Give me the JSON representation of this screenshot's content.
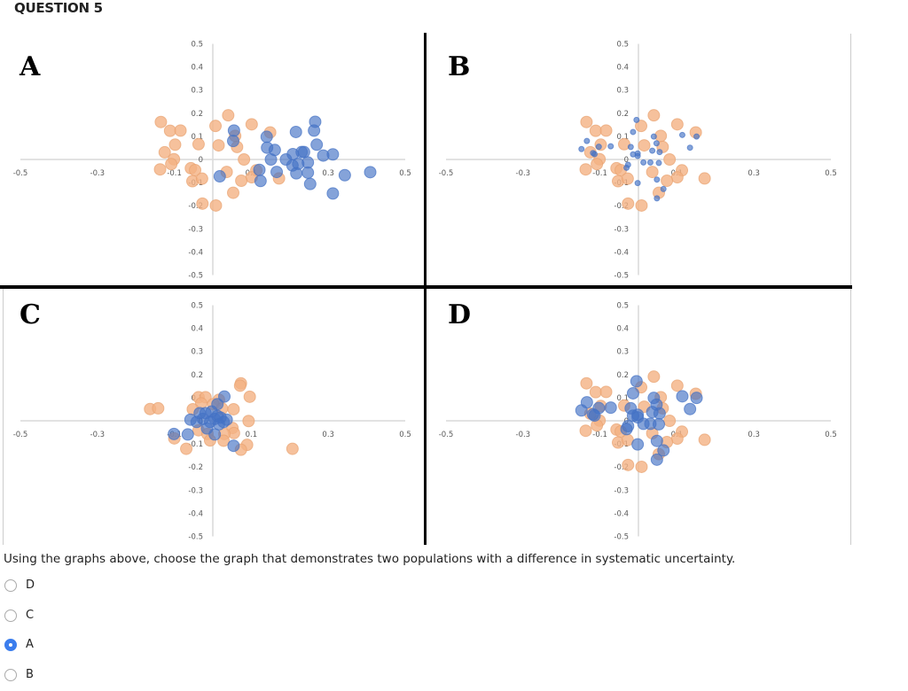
{
  "header": {
    "title": "QUESTION 5"
  },
  "question": {
    "text": "Using the graphs above, choose the graph that demonstrates two populations with a difference in systematic uncertainty.",
    "options": [
      {
        "label": "D",
        "selected": false
      },
      {
        "label": "C",
        "selected": false
      },
      {
        "label": "A",
        "selected": true
      },
      {
        "label": "B",
        "selected": false
      }
    ],
    "accent": "#3b7ded"
  },
  "colors": {
    "orange": "#f4b183",
    "blue": "#4472c4"
  },
  "chart_data": [
    {
      "label": "A",
      "type": "scatter",
      "xlim": [
        -0.5,
        0.5
      ],
      "ylim": [
        -0.5,
        0.5
      ],
      "xticks": [
        "-0.5",
        "-0.3",
        "-0.1",
        "0.1",
        "0.3",
        "0.5"
      ],
      "yticks": [
        "0.5",
        "0.4",
        "0.3",
        "0.2",
        "0.1",
        "0",
        "-0.1",
        "-0.2",
        "-0.3",
        "-0.4",
        "-0.5"
      ],
      "series": [
        {
          "color": "orange",
          "marker": "large",
          "points": [
            [
              -0.135,
              0.162
            ],
            [
              -0.111,
              0.124
            ],
            [
              -0.084,
              0.125
            ],
            [
              0.007,
              0.145
            ],
            [
              0.04,
              0.191
            ],
            [
              0.101,
              0.152
            ],
            [
              0.149,
              0.117
            ],
            [
              0.058,
              0.102
            ],
            [
              -0.098,
              0.064
            ],
            [
              -0.037,
              0.066
            ],
            [
              0.015,
              0.061
            ],
            [
              0.063,
              0.054
            ],
            [
              -0.125,
              0.031
            ],
            [
              -0.101,
              0.001
            ],
            [
              0.081,
              0
            ],
            [
              -0.108,
              -0.02
            ],
            [
              -0.137,
              -0.043
            ],
            [
              -0.057,
              -0.038
            ],
            [
              -0.046,
              -0.046
            ],
            [
              0.036,
              -0.054
            ],
            [
              0.113,
              -0.047
            ],
            [
              0.101,
              -0.077
            ],
            [
              0.172,
              -0.082
            ],
            [
              -0.053,
              -0.094
            ],
            [
              -0.028,
              -0.083
            ],
            [
              0.074,
              -0.092
            ],
            [
              0.053,
              -0.144
            ],
            [
              -0.027,
              -0.191
            ],
            [
              0.008,
              -0.199
            ]
          ]
        },
        {
          "color": "blue",
          "marker": "large",
          "points": [
            [
              0.266,
              0.163
            ],
            [
              0.263,
              0.125
            ],
            [
              0.216,
              0.119
            ],
            [
              0.055,
              0.125
            ],
            [
              0.14,
              0.098
            ],
            [
              0.053,
              0.08
            ],
            [
              0.27,
              0.064
            ],
            [
              0.141,
              0.051
            ],
            [
              0.161,
              0.041
            ],
            [
              0.208,
              0.023
            ],
            [
              0.231,
              0.032
            ],
            [
              0.237,
              0.032
            ],
            [
              0.287,
              0.017
            ],
            [
              0.312,
              0.022
            ],
            [
              0.19,
              0
            ],
            [
              0.151,
              0
            ],
            [
              0.207,
              -0.026
            ],
            [
              0.222,
              -0.019
            ],
            [
              0.247,
              -0.013
            ],
            [
              0.121,
              -0.045
            ],
            [
              0.166,
              -0.054
            ],
            [
              0.217,
              -0.06
            ],
            [
              0.247,
              -0.057
            ],
            [
              0.343,
              -0.068
            ],
            [
              0.409,
              -0.055
            ],
            [
              0.018,
              -0.073
            ],
            [
              0.124,
              -0.093
            ],
            [
              0.253,
              -0.106
            ],
            [
              0.312,
              -0.147
            ]
          ]
        }
      ]
    },
    {
      "label": "B",
      "type": "scatter",
      "xlim": [
        -0.5,
        0.5
      ],
      "ylim": [
        -0.5,
        0.5
      ],
      "xticks": [
        "-0.5",
        "-0.3",
        "-0.1",
        "0.1",
        "0.3",
        "0.5"
      ],
      "yticks": [
        "0.5",
        "0.4",
        "0.3",
        "0.2",
        "0.1",
        "0",
        "-0.1",
        "-0.2",
        "-0.3",
        "-0.4",
        "-0.5"
      ],
      "series": [
        {
          "color": "orange",
          "marker": "large",
          "points": [
            [
              -0.135,
              0.162
            ],
            [
              -0.111,
              0.124
            ],
            [
              -0.084,
              0.125
            ],
            [
              0.007,
              0.145
            ],
            [
              0.04,
              0.191
            ],
            [
              0.101,
              0.152
            ],
            [
              0.149,
              0.117
            ],
            [
              0.058,
              0.102
            ],
            [
              -0.098,
              0.064
            ],
            [
              -0.037,
              0.066
            ],
            [
              0.015,
              0.061
            ],
            [
              0.063,
              0.054
            ],
            [
              -0.125,
              0.031
            ],
            [
              -0.101,
              0.001
            ],
            [
              0.081,
              0
            ],
            [
              -0.108,
              -0.02
            ],
            [
              -0.137,
              -0.043
            ],
            [
              -0.057,
              -0.038
            ],
            [
              -0.046,
              -0.046
            ],
            [
              0.036,
              -0.054
            ],
            [
              0.113,
              -0.047
            ],
            [
              0.101,
              -0.077
            ],
            [
              0.172,
              -0.082
            ],
            [
              -0.053,
              -0.094
            ],
            [
              -0.028,
              -0.083
            ],
            [
              0.074,
              -0.092
            ],
            [
              0.053,
              -0.144
            ],
            [
              -0.027,
              -0.191
            ],
            [
              0.008,
              -0.199
            ]
          ]
        },
        {
          "color": "blue",
          "marker": "small",
          "points": [
            [
              -0.005,
              0.171
            ],
            [
              -0.014,
              0.119
            ],
            [
              -0.134,
              0.08
            ],
            [
              -0.148,
              0.045
            ],
            [
              -0.103,
              0.055
            ],
            [
              -0.072,
              0.057
            ],
            [
              -0.02,
              0.054
            ],
            [
              -0.118,
              0.028
            ],
            [
              -0.114,
              0.023
            ],
            [
              -0.014,
              0.022
            ],
            [
              -0.002,
              0.026
            ],
            [
              -0.002,
              0.015
            ],
            [
              0.04,
              0.099
            ],
            [
              0.047,
              0.07
            ],
            [
              0.036,
              0.038
            ],
            [
              0.055,
              0.032
            ],
            [
              0.114,
              0.106
            ],
            [
              0.134,
              0.051
            ],
            [
              0.151,
              0.099
            ],
            [
              0.013,
              -0.013
            ],
            [
              0.031,
              -0.013
            ],
            [
              0.053,
              -0.015
            ],
            [
              -0.027,
              -0.023
            ],
            [
              -0.031,
              -0.036
            ],
            [
              0.048,
              -0.087
            ],
            [
              -0.002,
              -0.102
            ],
            [
              0.065,
              -0.128
            ],
            [
              0.048,
              -0.168
            ]
          ]
        }
      ]
    },
    {
      "label": "C",
      "type": "scatter",
      "xlim": [
        -0.5,
        0.5
      ],
      "ylim": [
        -0.5,
        0.5
      ],
      "xticks": [
        "-0.5",
        "-0.3",
        "-0.1",
        "0.1",
        "0.3",
        "0.5"
      ],
      "yticks": [
        "0.5",
        "0.4",
        "0.3",
        "0.2",
        "0.1",
        "0",
        "-0.1",
        "-0.2",
        "-0.3",
        "-0.4",
        "-0.5"
      ],
      "series": [
        {
          "color": "orange",
          "marker": "large",
          "points": [
            [
              -0.163,
              0.051
            ],
            [
              -0.142,
              0.054
            ],
            [
              0.073,
              0.162
            ],
            [
              0.071,
              0.152
            ],
            [
              0.096,
              0.104
            ],
            [
              -0.037,
              0.102
            ],
            [
              -0.019,
              0.102
            ],
            [
              -0.03,
              0.075
            ],
            [
              0.016,
              0.091
            ],
            [
              0.001,
              0.072
            ],
            [
              0.024,
              0.053
            ],
            [
              0.054,
              0.05
            ],
            [
              -0.052,
              0.05
            ],
            [
              0.093,
              -0.001
            ],
            [
              0.051,
              -0.031
            ],
            [
              0.055,
              -0.053
            ],
            [
              -0.037,
              -0.041
            ],
            [
              -0.014,
              -0.057
            ],
            [
              0.03,
              -0.057
            ],
            [
              -0.1,
              -0.076
            ],
            [
              -0.007,
              -0.085
            ],
            [
              0.028,
              -0.086
            ],
            [
              0.089,
              -0.104
            ],
            [
              0.073,
              -0.125
            ],
            [
              -0.069,
              -0.121
            ],
            [
              0.207,
              -0.121
            ]
          ]
        },
        {
          "color": "blue",
          "marker": "large",
          "points": [
            [
              0.03,
              0.105
            ],
            [
              0.012,
              0.072
            ],
            [
              -0.019,
              0.033
            ],
            [
              -0.003,
              0.04
            ],
            [
              0.012,
              0.021
            ],
            [
              0.005,
              0.008
            ],
            [
              0.02,
              0.014
            ],
            [
              0.036,
              0.005
            ],
            [
              -0.058,
              0.005
            ],
            [
              -0.042,
              -0.005
            ],
            [
              -0.007,
              -0.005
            ],
            [
              0.016,
              -0.015
            ],
            [
              -0.026,
              0.008
            ],
            [
              -0.015,
              -0.033
            ],
            [
              -0.101,
              -0.057
            ],
            [
              -0.065,
              -0.059
            ],
            [
              0.005,
              -0.059
            ],
            [
              0.054,
              -0.108
            ],
            [
              0.028,
              -0.005
            ],
            [
              -0.034,
              0.033
            ]
          ]
        }
      ]
    },
    {
      "label": "D",
      "type": "scatter",
      "xlim": [
        -0.5,
        0.5
      ],
      "ylim": [
        -0.5,
        0.5
      ],
      "xticks": [
        "-0.5",
        "-0.3",
        "-0.1",
        "0.1",
        "0.3",
        "0.5"
      ],
      "yticks": [
        "0.5",
        "0.4",
        "0.3",
        "0.2",
        "0.1",
        "0",
        "-0.1",
        "-0.2",
        "-0.3",
        "-0.4",
        "-0.5"
      ],
      "series": [
        {
          "color": "orange",
          "marker": "large",
          "points": [
            [
              -0.135,
              0.162
            ],
            [
              -0.111,
              0.124
            ],
            [
              -0.084,
              0.125
            ],
            [
              0.007,
              0.145
            ],
            [
              0.04,
              0.191
            ],
            [
              0.101,
              0.152
            ],
            [
              0.149,
              0.117
            ],
            [
              0.058,
              0.102
            ],
            [
              -0.098,
              0.064
            ],
            [
              -0.037,
              0.066
            ],
            [
              0.015,
              0.061
            ],
            [
              0.063,
              0.054
            ],
            [
              -0.125,
              0.031
            ],
            [
              -0.101,
              0.001
            ],
            [
              0.081,
              0
            ],
            [
              -0.108,
              -0.02
            ],
            [
              -0.137,
              -0.043
            ],
            [
              -0.057,
              -0.038
            ],
            [
              -0.046,
              -0.046
            ],
            [
              0.036,
              -0.054
            ],
            [
              0.113,
              -0.047
            ],
            [
              0.101,
              -0.077
            ],
            [
              0.172,
              -0.082
            ],
            [
              -0.053,
              -0.094
            ],
            [
              -0.028,
              -0.083
            ],
            [
              0.074,
              -0.092
            ],
            [
              0.053,
              -0.144
            ],
            [
              -0.027,
              -0.191
            ],
            [
              0.008,
              -0.199
            ]
          ]
        },
        {
          "color": "blue",
          "marker": "large",
          "points": [
            [
              -0.005,
              0.171
            ],
            [
              -0.014,
              0.119
            ],
            [
              -0.134,
              0.08
            ],
            [
              -0.148,
              0.045
            ],
            [
              -0.103,
              0.055
            ],
            [
              -0.072,
              0.057
            ],
            [
              -0.02,
              0.054
            ],
            [
              -0.118,
              0.028
            ],
            [
              -0.114,
              0.023
            ],
            [
              -0.014,
              0.022
            ],
            [
              -0.002,
              0.026
            ],
            [
              -0.002,
              0.015
            ],
            [
              0.04,
              0.099
            ],
            [
              0.047,
              0.07
            ],
            [
              0.036,
              0.038
            ],
            [
              0.055,
              0.032
            ],
            [
              0.114,
              0.106
            ],
            [
              0.134,
              0.051
            ],
            [
              0.151,
              0.099
            ],
            [
              0.013,
              -0.013
            ],
            [
              0.031,
              -0.013
            ],
            [
              0.053,
              -0.015
            ],
            [
              -0.027,
              -0.023
            ],
            [
              -0.031,
              -0.036
            ],
            [
              0.048,
              -0.087
            ],
            [
              -0.002,
              -0.102
            ],
            [
              0.065,
              -0.128
            ],
            [
              0.048,
              -0.168
            ]
          ]
        }
      ]
    }
  ]
}
